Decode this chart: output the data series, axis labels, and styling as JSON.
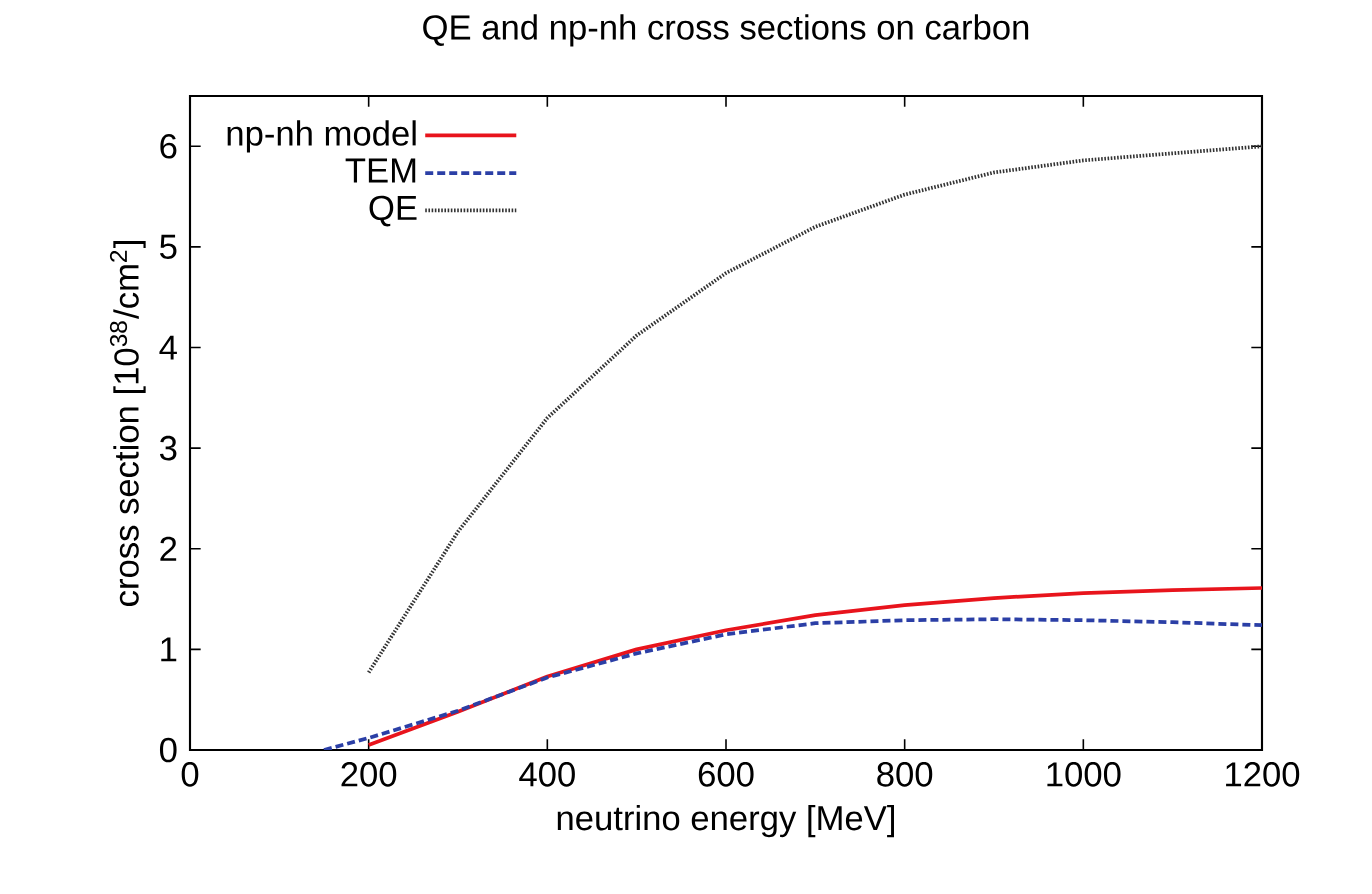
{
  "chart_data": {
    "type": "line",
    "title": "QE and np-nh cross sections on carbon",
    "xlabel": "neutrino energy [MeV]",
    "ylabel": "cross section [10$^{38}$/cm$^{2}$]",
    "xlim": [
      0,
      1200
    ],
    "ylim": [
      0,
      6.5
    ],
    "xticks": [
      0,
      200,
      400,
      600,
      800,
      1000,
      1200
    ],
    "yticks": [
      0,
      1,
      2,
      3,
      4,
      5,
      6
    ],
    "grid": false,
    "legend": "top left",
    "marker": "none",
    "series": [
      {
        "name": "np-nh model",
        "color": "#e8141c",
        "line_style": "solid",
        "x": [
          200,
          300,
          400,
          500,
          600,
          700,
          800,
          900,
          1000,
          1100,
          1200
        ],
        "values": [
          0.05,
          0.38,
          0.73,
          1.0,
          1.19,
          1.34,
          1.44,
          1.51,
          1.56,
          1.59,
          1.61
        ]
      },
      {
        "name": "TEM",
        "color": "#2b3fa6",
        "line_style": "dashed",
        "x": [
          150,
          200,
          300,
          400,
          500,
          600,
          700,
          800,
          900,
          1000,
          1100,
          1200
        ],
        "values": [
          0,
          0.12,
          0.39,
          0.72,
          0.96,
          1.15,
          1.26,
          1.29,
          1.3,
          1.29,
          1.27,
          1.24
        ]
      },
      {
        "name": "QE",
        "color": "#333333",
        "line_style": "dotted",
        "x": [
          200,
          300,
          400,
          500,
          600,
          700,
          800,
          900,
          1000,
          1100,
          1200
        ],
        "values": [
          0.77,
          2.17,
          3.3,
          4.12,
          4.74,
          5.2,
          5.52,
          5.74,
          5.86,
          5.93,
          6.0
        ]
      }
    ]
  }
}
